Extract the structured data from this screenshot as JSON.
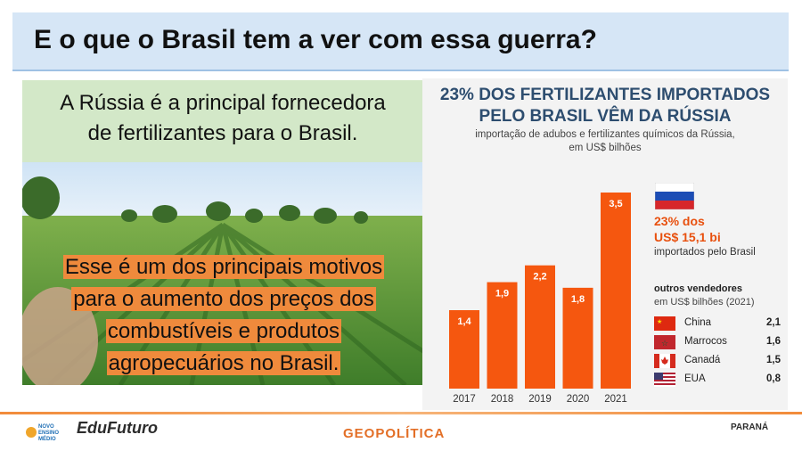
{
  "slide": {
    "title": "E o que o Brasil tem a ver com essa guerra?",
    "green_box": {
      "line1": "A Rússia é a principal fornecedora",
      "line2": "de fertilizantes para o Brasil."
    },
    "orange_text": {
      "line1": "Esse é um dos principais motivos",
      "line2": "para o aumento dos preços dos",
      "line3": "combustíveis e produtos",
      "line4": "agropecuários no Brasil."
    },
    "footer": {
      "label": "GEOPOLÍTICA",
      "logo_left_text": [
        "NOVO",
        "ENSINO",
        "MÉDIO"
      ],
      "logo_edu": "EduFuturo",
      "logo_right": "PARANÁ"
    }
  },
  "infographic": {
    "title_line1": "23% DOS FERTILIZANTES IMPORTADOS",
    "title_line2": "PELO BRASIL VÊM DA RÚSSIA",
    "sub_line1": "importação de adubos e fertilizantes químicos da Rússia,",
    "sub_line2": "em US$ bilhões",
    "highlight_line1": "23% dos",
    "highlight_line2": "US$ 15,1 bi",
    "highlight_line3": "importados pelo Brasil",
    "others_title": "outros vendedores",
    "others_sub": "em US$ bilhões (2021)",
    "colors": {
      "bar": "#f5570f",
      "title": "#2d4d6f",
      "accent": "#e8500e"
    }
  },
  "chart_data": {
    "type": "bar",
    "categories": [
      "2017",
      "2018",
      "2019",
      "2020",
      "2021"
    ],
    "values": [
      1.4,
      1.9,
      2.2,
      1.8,
      3.5
    ],
    "value_labels": [
      "1,4",
      "1,9",
      "2,2",
      "1,8",
      "3,5"
    ],
    "title": "23% DOS FERTILIZANTES IMPORTADOS PELO BRASIL VÊM DA RÚSSIA",
    "subtitle": "importação de adubos e fertilizantes químicos da Rússia, em US$ bilhões",
    "xlabel": "",
    "ylabel": "",
    "ylim": [
      0,
      3.5
    ],
    "grid": false,
    "other_sellers": [
      {
        "name": "China",
        "value": "2,1",
        "flag": "china-flag"
      },
      {
        "name": "Marrocos",
        "value": "1,6",
        "flag": "morocco-flag"
      },
      {
        "name": "Canadá",
        "value": "1,5",
        "flag": "canada-flag"
      },
      {
        "name": "EUA",
        "value": "0,8",
        "flag": "usa-flag"
      }
    ]
  }
}
